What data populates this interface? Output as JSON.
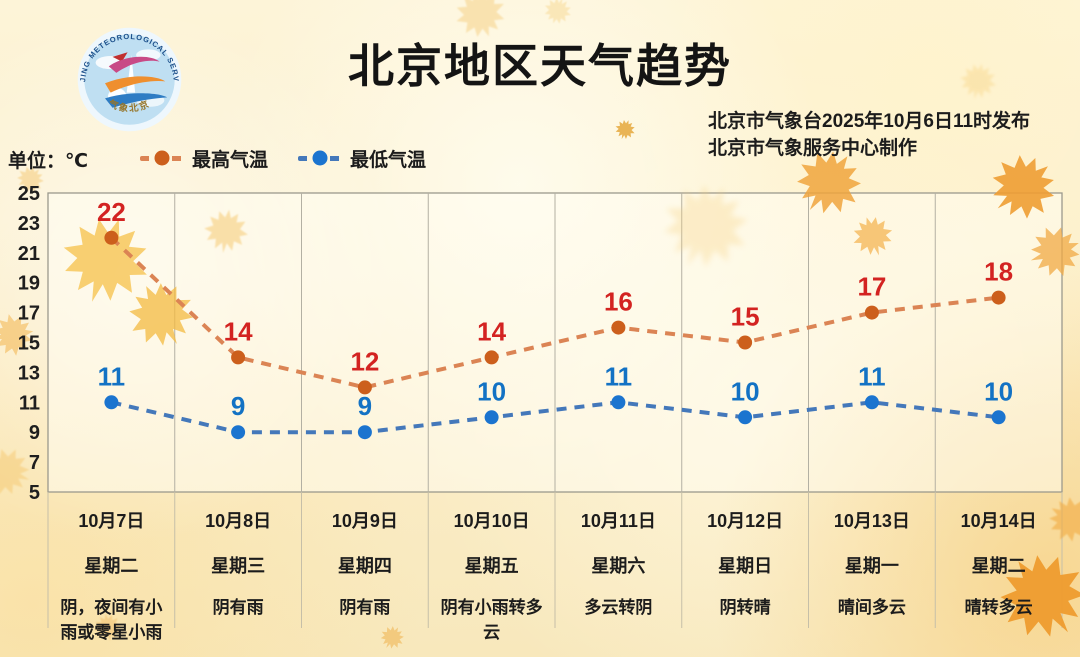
{
  "header": {
    "title": "北京地区天气趋势",
    "publisher_line1": "北京市气象台2025年10月6日11时发布",
    "publisher_line2": "北京市气象服务中心制作",
    "logo": {
      "ring_text": "BEIJING METEOROLOGICAL SERVICE",
      "bottom_text": "气象北京"
    }
  },
  "meta": {
    "unit_label": "单位：℃"
  },
  "chart_data": {
    "type": "line",
    "title": "北京地区天气趋势",
    "categories": [
      "10月7日",
      "10月8日",
      "10月9日",
      "10月10日",
      "10月11日",
      "10月12日",
      "10月13日",
      "10月14日"
    ],
    "weekdays": [
      "星期二",
      "星期三",
      "星期四",
      "星期五",
      "星期六",
      "星期日",
      "星期一",
      "星期二"
    ],
    "weather": [
      "阴，夜间有小雨或零星小雨",
      "阴有雨",
      "阴有雨",
      "阴有小雨转多云",
      "多云转阴",
      "阴转晴",
      "晴间多云",
      "晴转多云"
    ],
    "series": [
      {
        "name": "最高气温",
        "values": [
          22,
          14,
          12,
          14,
          16,
          15,
          17,
          18
        ],
        "line_color": "#db8454",
        "point_color": "#cc5f1c",
        "label_color": "#d32321"
      },
      {
        "name": "最低气温",
        "values": [
          11,
          9,
          9,
          10,
          11,
          10,
          11,
          10
        ],
        "line_color": "#4478ba",
        "point_color": "#1b74cf",
        "label_color": "#1372c4"
      }
    ],
    "ylim": [
      5,
      25
    ],
    "ytick_step": 2,
    "xlabel": "",
    "ylabel": "单位：℃",
    "grid": "vertical-only",
    "line_style": "dashed",
    "legend_position": "top-left",
    "style": {
      "grid_color": "#b3b0a3",
      "border_color": "#9b998d",
      "separator_color": "#c6bfa8",
      "plot_fill": "rgba(255,253,243,0.5)",
      "tick_label_color": "#1e1e1e"
    }
  }
}
